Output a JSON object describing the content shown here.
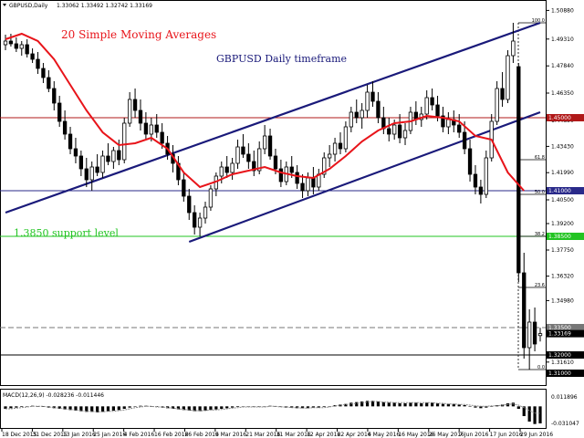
{
  "window": {
    "title": "GBPUSD,Daily",
    "ohlc": "1.33062 1.33492 1.32742 1.33169"
  },
  "annotations": {
    "sma_label": "20 Simple Moving Averages",
    "timeframe_label": "GBPUSD Daily timeframe",
    "support_label": "1.3850 support level"
  },
  "colors": {
    "sma": "#e8141a",
    "channel": "#1a1a7a",
    "support_green": "#22c422",
    "resistance_red": "#b01818",
    "hline_blue": "#2a2a8a",
    "timeframe_text": "#1a1a7a",
    "sma_text": "#e8141a",
    "support_text": "#22c422"
  },
  "chart_data": [
    {
      "type": "candlestick",
      "title": "GBPUSD,Daily",
      "x_ticks": [
        "18 Dec 2015",
        "31 Dec 2015",
        "13 Jan 2016",
        "25 Jan 2016",
        "4 Feb 2016",
        "16 Feb 2016",
        "26 Feb 2016",
        "9 Mar 2016",
        "21 Mar 2016",
        "31 Mar 2016",
        "12 Apr 2016",
        "22 Apr 2016",
        "4 May 2016",
        "16 May 2016",
        "26 May 2016",
        "7 Jun 2016",
        "17 Jun 2016",
        "29 Jun 2016"
      ],
      "y_ticks": [
        1.5088,
        1.4931,
        1.4784,
        1.4635,
        1.4485,
        1.4343,
        1.4199,
        1.405,
        1.392,
        1.3775,
        1.3632,
        1.3498,
        1.3352,
        1.3161
      ],
      "ylim": [
        1.306,
        1.5095
      ],
      "price_labels": [
        {
          "value": 1.45,
          "text": "1.45000",
          "color": "#b01818"
        },
        {
          "value": 1.41,
          "text": "1.41000",
          "color": "#2a2a8a"
        },
        {
          "value": 1.385,
          "text": "1.38500",
          "color": "#22c422"
        },
        {
          "value": 1.335,
          "text": "1.33500",
          "color": "#777777"
        },
        {
          "value": 1.33169,
          "text": "1.33169",
          "color": "#000000"
        },
        {
          "value": 1.32,
          "text": "1.32000",
          "color": "#000000"
        },
        {
          "value": 1.31,
          "text": "1.31000",
          "color": "#000000"
        }
      ],
      "fib_levels": [
        {
          "label": "100.0",
          "value": 1.502
        },
        {
          "label": "61.8",
          "value": 1.427
        },
        {
          "label": "50.0",
          "value": 1.408
        },
        {
          "label": "38.2",
          "value": 1.385
        },
        {
          "label": "23.6",
          "value": 1.357
        },
        {
          "label": "0.0",
          "value": 1.312
        }
      ],
      "horizontal_lines": [
        {
          "value": 1.45,
          "color": "#b01818"
        },
        {
          "value": 1.41,
          "color": "#2a2a8a"
        },
        {
          "value": 1.385,
          "color": "#22c422"
        },
        {
          "value": 1.335,
          "color": "#777777",
          "dashed": true
        },
        {
          "value": 1.32,
          "color": "#000000"
        }
      ],
      "channel_lines": [
        {
          "x": [
            0,
            99
          ],
          "y": [
            1.398,
            1.502
          ]
        },
        {
          "x": [
            34,
            99
          ],
          "y": [
            1.382,
            1.453
          ]
        }
      ],
      "candles": [
        [
          1.49,
          1.4955,
          1.487,
          1.492
        ],
        [
          1.492,
          1.496,
          1.489,
          1.4905
        ],
        [
          1.4905,
          1.494,
          1.486,
          1.488
        ],
        [
          1.488,
          1.492,
          1.484,
          1.49
        ],
        [
          1.49,
          1.493,
          1.483,
          1.485
        ],
        [
          1.485,
          1.488,
          1.48,
          1.482
        ],
        [
          1.482,
          1.486,
          1.474,
          1.477
        ],
        [
          1.477,
          1.48,
          1.469,
          1.472
        ],
        [
          1.472,
          1.476,
          1.464,
          1.466
        ],
        [
          1.466,
          1.47,
          1.454,
          1.458
        ],
        [
          1.458,
          1.462,
          1.445,
          1.448
        ],
        [
          1.448,
          1.454,
          1.438,
          1.441
        ],
        [
          1.441,
          1.445,
          1.43,
          1.433
        ],
        [
          1.433,
          1.439,
          1.425,
          1.429
        ],
        [
          1.429,
          1.432,
          1.418,
          1.422
        ],
        [
          1.422,
          1.428,
          1.412,
          1.416
        ],
        [
          1.416,
          1.426,
          1.41,
          1.423
        ],
        [
          1.423,
          1.43,
          1.418,
          1.42
        ],
        [
          1.42,
          1.432,
          1.417,
          1.429
        ],
        [
          1.429,
          1.436,
          1.424,
          1.426
        ],
        [
          1.426,
          1.434,
          1.422,
          1.432
        ],
        [
          1.432,
          1.438,
          1.424,
          1.427
        ],
        [
          1.427,
          1.45,
          1.425,
          1.447
        ],
        [
          1.447,
          1.464,
          1.445,
          1.46
        ],
        [
          1.46,
          1.466,
          1.45,
          1.454
        ],
        [
          1.454,
          1.46,
          1.443,
          1.447
        ],
        [
          1.447,
          1.453,
          1.438,
          1.441
        ],
        [
          1.441,
          1.45,
          1.437,
          1.446
        ],
        [
          1.446,
          1.452,
          1.439,
          1.442
        ],
        [
          1.442,
          1.447,
          1.433,
          1.436
        ],
        [
          1.436,
          1.44,
          1.427,
          1.43
        ],
        [
          1.43,
          1.435,
          1.42,
          1.425
        ],
        [
          1.425,
          1.429,
          1.413,
          1.416
        ],
        [
          1.416,
          1.42,
          1.404,
          1.407
        ],
        [
          1.407,
          1.411,
          1.394,
          1.398
        ],
        [
          1.398,
          1.402,
          1.386,
          1.39
        ],
        [
          1.39,
          1.398,
          1.385,
          1.395
        ],
        [
          1.395,
          1.404,
          1.392,
          1.401
        ],
        [
          1.401,
          1.413,
          1.399,
          1.411
        ],
        [
          1.411,
          1.42,
          1.407,
          1.418
        ],
        [
          1.418,
          1.426,
          1.414,
          1.423
        ],
        [
          1.423,
          1.429,
          1.417,
          1.42
        ],
        [
          1.42,
          1.428,
          1.416,
          1.425
        ],
        [
          1.425,
          1.438,
          1.422,
          1.434
        ],
        [
          1.434,
          1.441,
          1.428,
          1.43
        ],
        [
          1.43,
          1.436,
          1.422,
          1.426
        ],
        [
          1.426,
          1.432,
          1.418,
          1.421
        ],
        [
          1.421,
          1.437,
          1.419,
          1.433
        ],
        [
          1.433,
          1.446,
          1.43,
          1.44
        ],
        [
          1.44,
          1.444,
          1.427,
          1.429
        ],
        [
          1.429,
          1.433,
          1.419,
          1.422
        ],
        [
          1.422,
          1.427,
          1.412,
          1.415
        ],
        [
          1.415,
          1.426,
          1.413,
          1.423
        ],
        [
          1.423,
          1.429,
          1.417,
          1.42
        ],
        [
          1.42,
          1.424,
          1.411,
          1.414
        ],
        [
          1.414,
          1.419,
          1.406,
          1.41
        ],
        [
          1.41,
          1.42,
          1.407,
          1.417
        ],
        [
          1.417,
          1.423,
          1.408,
          1.412
        ],
        [
          1.412,
          1.422,
          1.41,
          1.419
        ],
        [
          1.419,
          1.431,
          1.417,
          1.428
        ],
        [
          1.428,
          1.435,
          1.423,
          1.43
        ],
        [
          1.43,
          1.439,
          1.426,
          1.436
        ],
        [
          1.436,
          1.442,
          1.43,
          1.433
        ],
        [
          1.433,
          1.448,
          1.431,
          1.445
        ],
        [
          1.445,
          1.456,
          1.442,
          1.453
        ],
        [
          1.453,
          1.46,
          1.447,
          1.45
        ],
        [
          1.45,
          1.458,
          1.444,
          1.454
        ],
        [
          1.454,
          1.468,
          1.45,
          1.464
        ],
        [
          1.464,
          1.47,
          1.456,
          1.459
        ],
        [
          1.459,
          1.464,
          1.447,
          1.45
        ],
        [
          1.45,
          1.456,
          1.441,
          1.444
        ],
        [
          1.444,
          1.45,
          1.437,
          1.441
        ],
        [
          1.441,
          1.449,
          1.438,
          1.446
        ],
        [
          1.446,
          1.452,
          1.436,
          1.439
        ],
        [
          1.439,
          1.447,
          1.435,
          1.443
        ],
        [
          1.443,
          1.456,
          1.441,
          1.453
        ],
        [
          1.453,
          1.459,
          1.446,
          1.449
        ],
        [
          1.449,
          1.456,
          1.445,
          1.452
        ],
        [
          1.452,
          1.465,
          1.449,
          1.461
        ],
        [
          1.461,
          1.466,
          1.454,
          1.457
        ],
        [
          1.457,
          1.462,
          1.448,
          1.451
        ],
        [
          1.451,
          1.456,
          1.442,
          1.445
        ],
        [
          1.445,
          1.453,
          1.441,
          1.449
        ],
        [
          1.449,
          1.454,
          1.442,
          1.446
        ],
        [
          1.446,
          1.452,
          1.439,
          1.442
        ],
        [
          1.442,
          1.448,
          1.43,
          1.433
        ],
        [
          1.433,
          1.438,
          1.415,
          1.419
        ],
        [
          1.419,
          1.424,
          1.408,
          1.412
        ],
        [
          1.412,
          1.416,
          1.403,
          1.408
        ],
        [
          1.408,
          1.432,
          1.406,
          1.428
        ],
        [
          1.428,
          1.452,
          1.426,
          1.448
        ],
        [
          1.448,
          1.47,
          1.446,
          1.466
        ],
        [
          1.466,
          1.475,
          1.456,
          1.46
        ],
        [
          1.46,
          1.487,
          1.458,
          1.484
        ],
        [
          1.484,
          1.502,
          1.48,
          1.492
        ],
        [
          1.478,
          1.48,
          1.36,
          1.365
        ],
        [
          1.365,
          1.376,
          1.318,
          1.324
        ],
        [
          1.324,
          1.345,
          1.312,
          1.338
        ],
        [
          1.338,
          1.346,
          1.322,
          1.326
        ],
        [
          1.3306,
          1.3349,
          1.3274,
          1.3317
        ]
      ],
      "sma20": {
        "x": [
          0,
          3,
          6,
          9,
          12,
          15,
          18,
          21,
          24,
          27,
          30,
          33,
          36,
          39,
          42,
          45,
          48,
          51,
          54,
          57,
          60,
          63,
          66,
          69,
          72,
          75,
          78,
          81,
          84,
          87,
          90,
          93,
          96
        ],
        "y": [
          1.493,
          1.496,
          1.492,
          1.482,
          1.468,
          1.454,
          1.442,
          1.435,
          1.436,
          1.439,
          1.433,
          1.42,
          1.412,
          1.415,
          1.419,
          1.421,
          1.423,
          1.42,
          1.418,
          1.417,
          1.422,
          1.429,
          1.437,
          1.443,
          1.447,
          1.448,
          1.451,
          1.45,
          1.448,
          1.44,
          1.438,
          1.42,
          1.41
        ]
      },
      "macd": {
        "label": "MACD(12,26,9) -0.028236 -0.011446",
        "ylim": [
          -0.034,
          0.026
        ],
        "y_ticks": [
          "0.011896",
          "-0.031047"
        ],
        "histogram": [
          -0.004,
          -0.003,
          -0.002,
          -0.001,
          0.0,
          0.001,
          0.0,
          -0.001,
          -0.002,
          -0.003,
          -0.004,
          -0.005,
          -0.006,
          -0.007,
          -0.008,
          -0.009,
          -0.009,
          -0.01,
          -0.009,
          -0.008,
          -0.007,
          -0.006,
          -0.004,
          -0.002,
          0.0,
          0.001,
          0.001,
          0.0,
          -0.001,
          -0.002,
          -0.003,
          -0.004,
          -0.005,
          -0.006,
          -0.007,
          -0.008,
          -0.008,
          -0.007,
          -0.006,
          -0.005,
          -0.004,
          -0.003,
          -0.002,
          -0.001,
          0.0,
          0.0,
          -0.001,
          -0.001,
          0.0,
          0.001,
          0.0,
          -0.001,
          -0.002,
          -0.002,
          -0.003,
          -0.003,
          -0.003,
          -0.002,
          -0.002,
          -0.001,
          0.0,
          0.002,
          0.003,
          0.004,
          0.006,
          0.007,
          0.008,
          0.009,
          0.009,
          0.008,
          0.007,
          0.006,
          0.006,
          0.005,
          0.005,
          0.006,
          0.006,
          0.005,
          0.006,
          0.006,
          0.005,
          0.004,
          0.004,
          0.004,
          0.003,
          0.002,
          0.0,
          -0.002,
          -0.003,
          -0.002,
          0.0,
          0.002,
          0.003,
          0.005,
          0.006,
          -0.004,
          -0.016,
          -0.025,
          -0.029,
          -0.028
        ],
        "signal": [
          -0.004,
          -0.004,
          -0.003,
          -0.002,
          -0.001,
          0.0,
          0.0,
          0.0,
          -0.001,
          -0.002,
          -0.003,
          -0.004,
          -0.005,
          -0.006,
          -0.007,
          -0.008,
          -0.008,
          -0.009,
          -0.009,
          -0.008,
          -0.008,
          -0.007,
          -0.006,
          -0.004,
          -0.002,
          -0.001,
          0.0,
          0.0,
          -0.001,
          -0.001,
          -0.002,
          -0.003,
          -0.004,
          -0.005,
          -0.006,
          -0.007,
          -0.007,
          -0.007,
          -0.006,
          -0.006,
          -0.005,
          -0.004,
          -0.003,
          -0.002,
          -0.001,
          -0.001,
          -0.001,
          -0.001,
          -0.001,
          0.0,
          0.0,
          -0.001,
          -0.001,
          -0.002,
          -0.002,
          -0.003,
          -0.003,
          -0.002,
          -0.002,
          -0.002,
          -0.001,
          0.001,
          0.002,
          0.003,
          0.004,
          0.005,
          0.006,
          0.007,
          0.008,
          0.008,
          0.007,
          0.007,
          0.006,
          0.006,
          0.006,
          0.006,
          0.006,
          0.006,
          0.006,
          0.006,
          0.005,
          0.005,
          0.004,
          0.004,
          0.003,
          0.003,
          0.002,
          0.001,
          0.0,
          0.0,
          0.001,
          0.001,
          0.002,
          0.003,
          0.004,
          0.002,
          -0.002,
          -0.007,
          -0.011,
          -0.0114
        ]
      }
    }
  ]
}
